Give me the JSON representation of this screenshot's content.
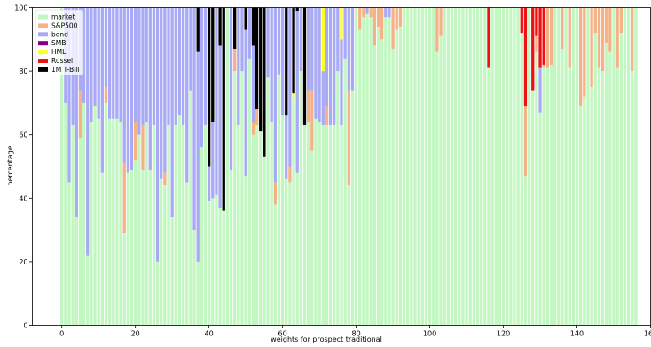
{
  "chart_data": {
    "type": "bar",
    "stacked": true,
    "xlabel": "weights for prospect traditional",
    "ylabel": "percentage",
    "xlim": [
      -8,
      160
    ],
    "ylim": [
      0,
      100
    ],
    "xticks": [
      0,
      20,
      40,
      60,
      80,
      100,
      120,
      140,
      160
    ],
    "yticks": [
      0,
      20,
      40,
      60,
      80,
      100
    ],
    "grid": false,
    "legend_position": "top-left",
    "x_start": 0,
    "bar_count": 155,
    "series": [
      {
        "name": "market",
        "color": "#c2f7c2"
      },
      {
        "name": "S&P500",
        "color": "#f5b286"
      },
      {
        "name": "bond",
        "color": "#a8aaf5"
      },
      {
        "name": "SMB",
        "color": "#800080"
      },
      {
        "name": "HML",
        "color": "#ffff22"
      },
      {
        "name": "Russel",
        "color": "#ee1111"
      },
      {
        "name": "1M T-Bill",
        "color": "#000000"
      }
    ],
    "bars": [
      [
        100,
        0,
        0,
        0,
        0,
        0,
        0
      ],
      [
        70,
        0,
        30,
        0,
        0,
        0,
        0
      ],
      [
        45,
        0,
        55,
        0,
        0,
        0,
        0
      ],
      [
        63,
        0,
        37,
        0,
        0,
        0,
        0
      ],
      [
        34,
        0,
        66,
        0,
        0,
        0,
        0
      ],
      [
        59,
        15,
        26,
        0,
        0,
        0,
        0
      ],
      [
        70,
        0,
        30,
        0,
        0,
        0,
        0
      ],
      [
        22,
        0,
        78,
        0,
        0,
        0,
        0
      ],
      [
        64,
        0,
        36,
        0,
        0,
        0,
        0
      ],
      [
        69,
        0,
        31,
        0,
        0,
        0,
        0
      ],
      [
        65,
        0,
        35,
        0,
        0,
        0,
        0
      ],
      [
        48,
        0,
        52,
        0,
        0,
        0,
        0
      ],
      [
        70,
        5,
        25,
        0,
        0,
        0,
        0
      ],
      [
        65,
        0,
        35,
        0,
        0,
        0,
        0
      ],
      [
        65,
        0,
        35,
        0,
        0,
        0,
        0
      ],
      [
        65,
        0,
        35,
        0,
        0,
        0,
        0
      ],
      [
        64,
        0,
        36,
        0,
        0,
        0,
        0
      ],
      [
        29,
        22,
        49,
        0,
        0,
        0,
        0
      ],
      [
        48,
        0,
        52,
        0,
        0,
        0,
        0
      ],
      [
        49,
        0,
        51,
        0,
        0,
        0,
        0
      ],
      [
        52,
        12,
        36,
        0,
        0,
        0,
        0
      ],
      [
        60,
        0,
        40,
        0,
        0,
        0,
        0
      ],
      [
        49,
        14,
        37,
        0,
        0,
        0,
        0
      ],
      [
        64,
        0,
        36,
        0,
        0,
        0,
        0
      ],
      [
        49,
        0,
        51,
        0,
        0,
        0,
        0
      ],
      [
        63,
        0,
        37,
        0,
        0,
        0,
        0
      ],
      [
        20,
        0,
        80,
        0,
        0,
        0,
        0
      ],
      [
        46,
        0,
        54,
        0,
        0,
        0,
        0
      ],
      [
        44,
        4,
        52,
        0,
        0,
        0,
        0
      ],
      [
        63,
        0,
        37,
        0,
        0,
        0,
        0
      ],
      [
        34,
        0,
        66,
        0,
        0,
        0,
        0
      ],
      [
        63,
        0,
        37,
        0,
        0,
        0,
        0
      ],
      [
        66,
        0,
        34,
        0,
        0,
        0,
        0
      ],
      [
        63,
        0,
        37,
        0,
        0,
        0,
        0
      ],
      [
        45,
        0,
        55,
        0,
        0,
        0,
        0
      ],
      [
        74,
        0,
        26,
        0,
        0,
        0,
        0
      ],
      [
        30,
        0,
        70,
        0,
        0,
        0,
        0
      ],
      [
        20,
        0,
        66,
        0,
        0,
        0,
        14
      ],
      [
        56,
        0,
        44,
        0,
        0,
        0,
        0
      ],
      [
        63,
        0,
        37,
        0,
        0,
        0,
        0
      ],
      [
        39,
        0,
        11,
        0,
        0,
        0,
        50
      ],
      [
        40,
        0,
        24,
        0,
        0,
        0,
        36
      ],
      [
        41,
        0,
        59,
        0,
        0,
        0,
        0
      ],
      [
        37,
        0,
        51,
        0,
        0,
        0,
        12
      ],
      [
        36,
        0,
        0,
        0,
        0,
        0,
        64
      ],
      [
        100,
        0,
        0,
        0,
        0,
        0,
        0
      ],
      [
        49,
        0,
        51,
        0,
        0,
        0,
        0
      ],
      [
        80,
        7,
        0,
        0,
        0,
        0,
        13
      ],
      [
        63,
        0,
        37,
        0,
        0,
        0,
        0
      ],
      [
        80,
        0,
        20,
        0,
        0,
        0,
        0
      ],
      [
        47,
        0,
        46,
        0,
        0,
        0,
        7
      ],
      [
        84,
        0,
        16,
        0,
        0,
        0,
        0
      ],
      [
        60,
        4,
        24,
        0,
        0,
        0,
        12
      ],
      [
        63,
        5,
        0,
        0,
        0,
        0,
        32
      ],
      [
        61,
        0,
        0,
        0,
        0,
        0,
        39
      ],
      [
        53,
        0,
        0,
        0,
        0,
        0,
        47
      ],
      [
        78,
        0,
        22,
        0,
        0,
        0,
        0
      ],
      [
        64,
        0,
        36,
        0,
        0,
        0,
        0
      ],
      [
        38,
        7,
        55,
        0,
        0,
        0,
        0
      ],
      [
        79,
        0,
        21,
        0,
        0,
        0,
        0
      ],
      [
        66,
        0,
        34,
        0,
        0,
        0,
        0
      ],
      [
        46,
        0,
        20,
        0,
        0,
        0,
        34
      ],
      [
        45,
        5,
        50,
        0,
        0,
        0,
        0
      ],
      [
        72,
        0,
        0,
        0,
        1,
        0,
        27
      ],
      [
        48,
        0,
        51,
        0,
        0,
        0,
        1
      ],
      [
        80,
        0,
        20,
        0,
        0,
        0,
        0
      ],
      [
        63,
        0,
        0,
        0,
        0,
        0,
        37
      ],
      [
        64,
        10,
        26,
        0,
        0,
        0,
        0
      ],
      [
        55,
        19,
        26,
        0,
        0,
        0,
        0
      ],
      [
        65,
        0,
        35,
        0,
        0,
        0,
        0
      ],
      [
        64,
        0,
        36,
        0,
        0,
        0,
        0
      ],
      [
        63,
        0,
        17,
        0,
        20,
        0,
        0
      ],
      [
        63,
        6,
        31,
        0,
        0,
        0,
        0
      ],
      [
        63,
        0,
        37,
        0,
        0,
        0,
        0
      ],
      [
        63,
        0,
        37,
        0,
        0,
        0,
        0
      ],
      [
        80,
        0,
        20,
        0,
        0,
        0,
        0
      ],
      [
        63,
        0,
        27,
        0,
        10,
        0,
        0
      ],
      [
        84,
        0,
        16,
        0,
        0,
        0,
        0
      ],
      [
        44,
        30,
        26,
        0,
        0,
        0,
        0
      ],
      [
        74,
        0,
        26,
        0,
        0,
        0,
        0
      ],
      [
        100,
        0,
        0,
        0,
        0,
        0,
        0
      ],
      [
        93,
        7,
        0,
        0,
        0,
        0,
        0
      ],
      [
        97,
        3,
        0,
        0,
        0,
        0,
        0
      ],
      [
        98,
        0,
        2,
        0,
        0,
        0,
        0
      ],
      [
        97,
        3,
        0,
        0,
        0,
        0,
        0
      ],
      [
        88,
        12,
        0,
        0,
        0,
        0,
        0
      ],
      [
        94,
        6,
        0,
        0,
        0,
        0,
        0
      ],
      [
        90,
        10,
        0,
        0,
        0,
        0,
        0
      ],
      [
        97,
        0,
        3,
        0,
        0,
        0,
        0
      ],
      [
        97,
        0,
        3,
        0,
        0,
        0,
        0
      ],
      [
        87,
        13,
        0,
        0,
        0,
        0,
        0
      ],
      [
        93,
        7,
        0,
        0,
        0,
        0,
        0
      ],
      [
        94,
        6,
        0,
        0,
        0,
        0,
        0
      ],
      [
        100,
        0,
        0,
        0,
        0,
        0,
        0
      ],
      [
        100,
        0,
        0,
        0,
        0,
        0,
        0
      ],
      [
        100,
        0,
        0,
        0,
        0,
        0,
        0
      ],
      [
        100,
        0,
        0,
        0,
        0,
        0,
        0
      ],
      [
        100,
        0,
        0,
        0,
        0,
        0,
        0
      ],
      [
        100,
        0,
        0,
        0,
        0,
        0,
        0
      ],
      [
        100,
        0,
        0,
        0,
        0,
        0,
        0
      ],
      [
        100,
        0,
        0,
        0,
        0,
        0,
        0
      ],
      [
        100,
        0,
        0,
        0,
        0,
        0,
        0
      ],
      [
        86,
        14,
        0,
        0,
        0,
        0,
        0
      ],
      [
        91,
        9,
        0,
        0,
        0,
        0,
        0
      ],
      [
        100,
        0,
        0,
        0,
        0,
        0,
        0
      ],
      [
        100,
        0,
        0,
        0,
        0,
        0,
        0
      ],
      [
        100,
        0,
        0,
        0,
        0,
        0,
        0
      ],
      [
        100,
        0,
        0,
        0,
        0,
        0,
        0
      ],
      [
        100,
        0,
        0,
        0,
        0,
        0,
        0
      ],
      [
        100,
        0,
        0,
        0,
        0,
        0,
        0
      ],
      [
        100,
        0,
        0,
        0,
        0,
        0,
        0
      ],
      [
        100,
        0,
        0,
        0,
        0,
        0,
        0
      ],
      [
        100,
        0,
        0,
        0,
        0,
        0,
        0
      ],
      [
        100,
        0,
        0,
        0,
        0,
        0,
        0
      ],
      [
        100,
        0,
        0,
        0,
        0,
        0,
        0
      ],
      [
        100,
        0,
        0,
        0,
        0,
        0,
        0
      ],
      [
        81,
        0,
        0,
        0,
        0,
        19,
        0
      ],
      [
        100,
        0,
        0,
        0,
        0,
        0,
        0
      ],
      [
        100,
        0,
        0,
        0,
        0,
        0,
        0
      ],
      [
        100,
        0,
        0,
        0,
        0,
        0,
        0
      ],
      [
        100,
        0,
        0,
        0,
        0,
        0,
        0
      ],
      [
        100,
        0,
        0,
        0,
        0,
        0,
        0
      ],
      [
        100,
        0,
        0,
        0,
        0,
        0,
        0
      ],
      [
        100,
        0,
        0,
        0,
        0,
        0,
        0
      ],
      [
        100,
        0,
        0,
        0,
        0,
        0,
        0
      ],
      [
        92,
        0,
        0,
        0,
        0,
        8,
        0
      ],
      [
        47,
        22,
        0,
        0,
        0,
        31,
        0
      ],
      [
        100,
        0,
        0,
        0,
        0,
        0,
        0
      ],
      [
        74,
        0,
        0,
        0,
        0,
        26,
        0
      ],
      [
        86,
        5,
        0,
        0,
        0,
        9,
        0
      ],
      [
        67,
        0,
        14,
        0,
        0,
        19,
        0
      ],
      [
        81,
        1,
        0,
        0,
        0,
        18,
        0
      ],
      [
        81,
        19,
        0,
        0,
        0,
        0,
        0
      ],
      [
        82,
        18,
        0,
        0,
        0,
        0,
        0
      ],
      [
        100,
        0,
        0,
        0,
        0,
        0,
        0
      ],
      [
        100,
        0,
        0,
        0,
        0,
        0,
        0
      ],
      [
        87,
        13,
        0,
        0,
        0,
        0,
        0
      ],
      [
        100,
        0,
        0,
        0,
        0,
        0,
        0
      ],
      [
        81,
        19,
        0,
        0,
        0,
        0,
        0
      ],
      [
        100,
        0,
        0,
        0,
        0,
        0,
        0
      ],
      [
        100,
        0,
        0,
        0,
        0,
        0,
        0
      ],
      [
        69,
        31,
        0,
        0,
        0,
        0,
        0
      ],
      [
        72,
        28,
        0,
        0,
        0,
        0,
        0
      ],
      [
        100,
        0,
        0,
        0,
        0,
        0,
        0
      ],
      [
        75,
        25,
        0,
        0,
        0,
        0,
        0
      ],
      [
        92,
        8,
        0,
        0,
        0,
        0,
        0
      ],
      [
        81,
        19,
        0,
        0,
        0,
        0,
        0
      ],
      [
        80,
        20,
        0,
        0,
        0,
        0,
        0
      ],
      [
        89,
        11,
        0,
        0,
        0,
        0,
        0
      ],
      [
        86,
        14,
        0,
        0,
        0,
        0,
        0
      ],
      [
        100,
        0,
        0,
        0,
        0,
        0,
        0
      ],
      [
        81,
        19,
        0,
        0,
        0,
        0,
        0
      ],
      [
        92,
        8,
        0,
        0,
        0,
        0,
        0
      ],
      [
        100,
        0,
        0,
        0,
        0,
        0,
        0
      ],
      [
        100,
        0,
        0,
        0,
        0,
        0,
        0
      ],
      [
        80,
        20,
        0,
        0,
        0,
        0,
        0
      ],
      [
        100,
        0,
        0,
        0,
        0,
        0,
        0
      ]
    ]
  }
}
